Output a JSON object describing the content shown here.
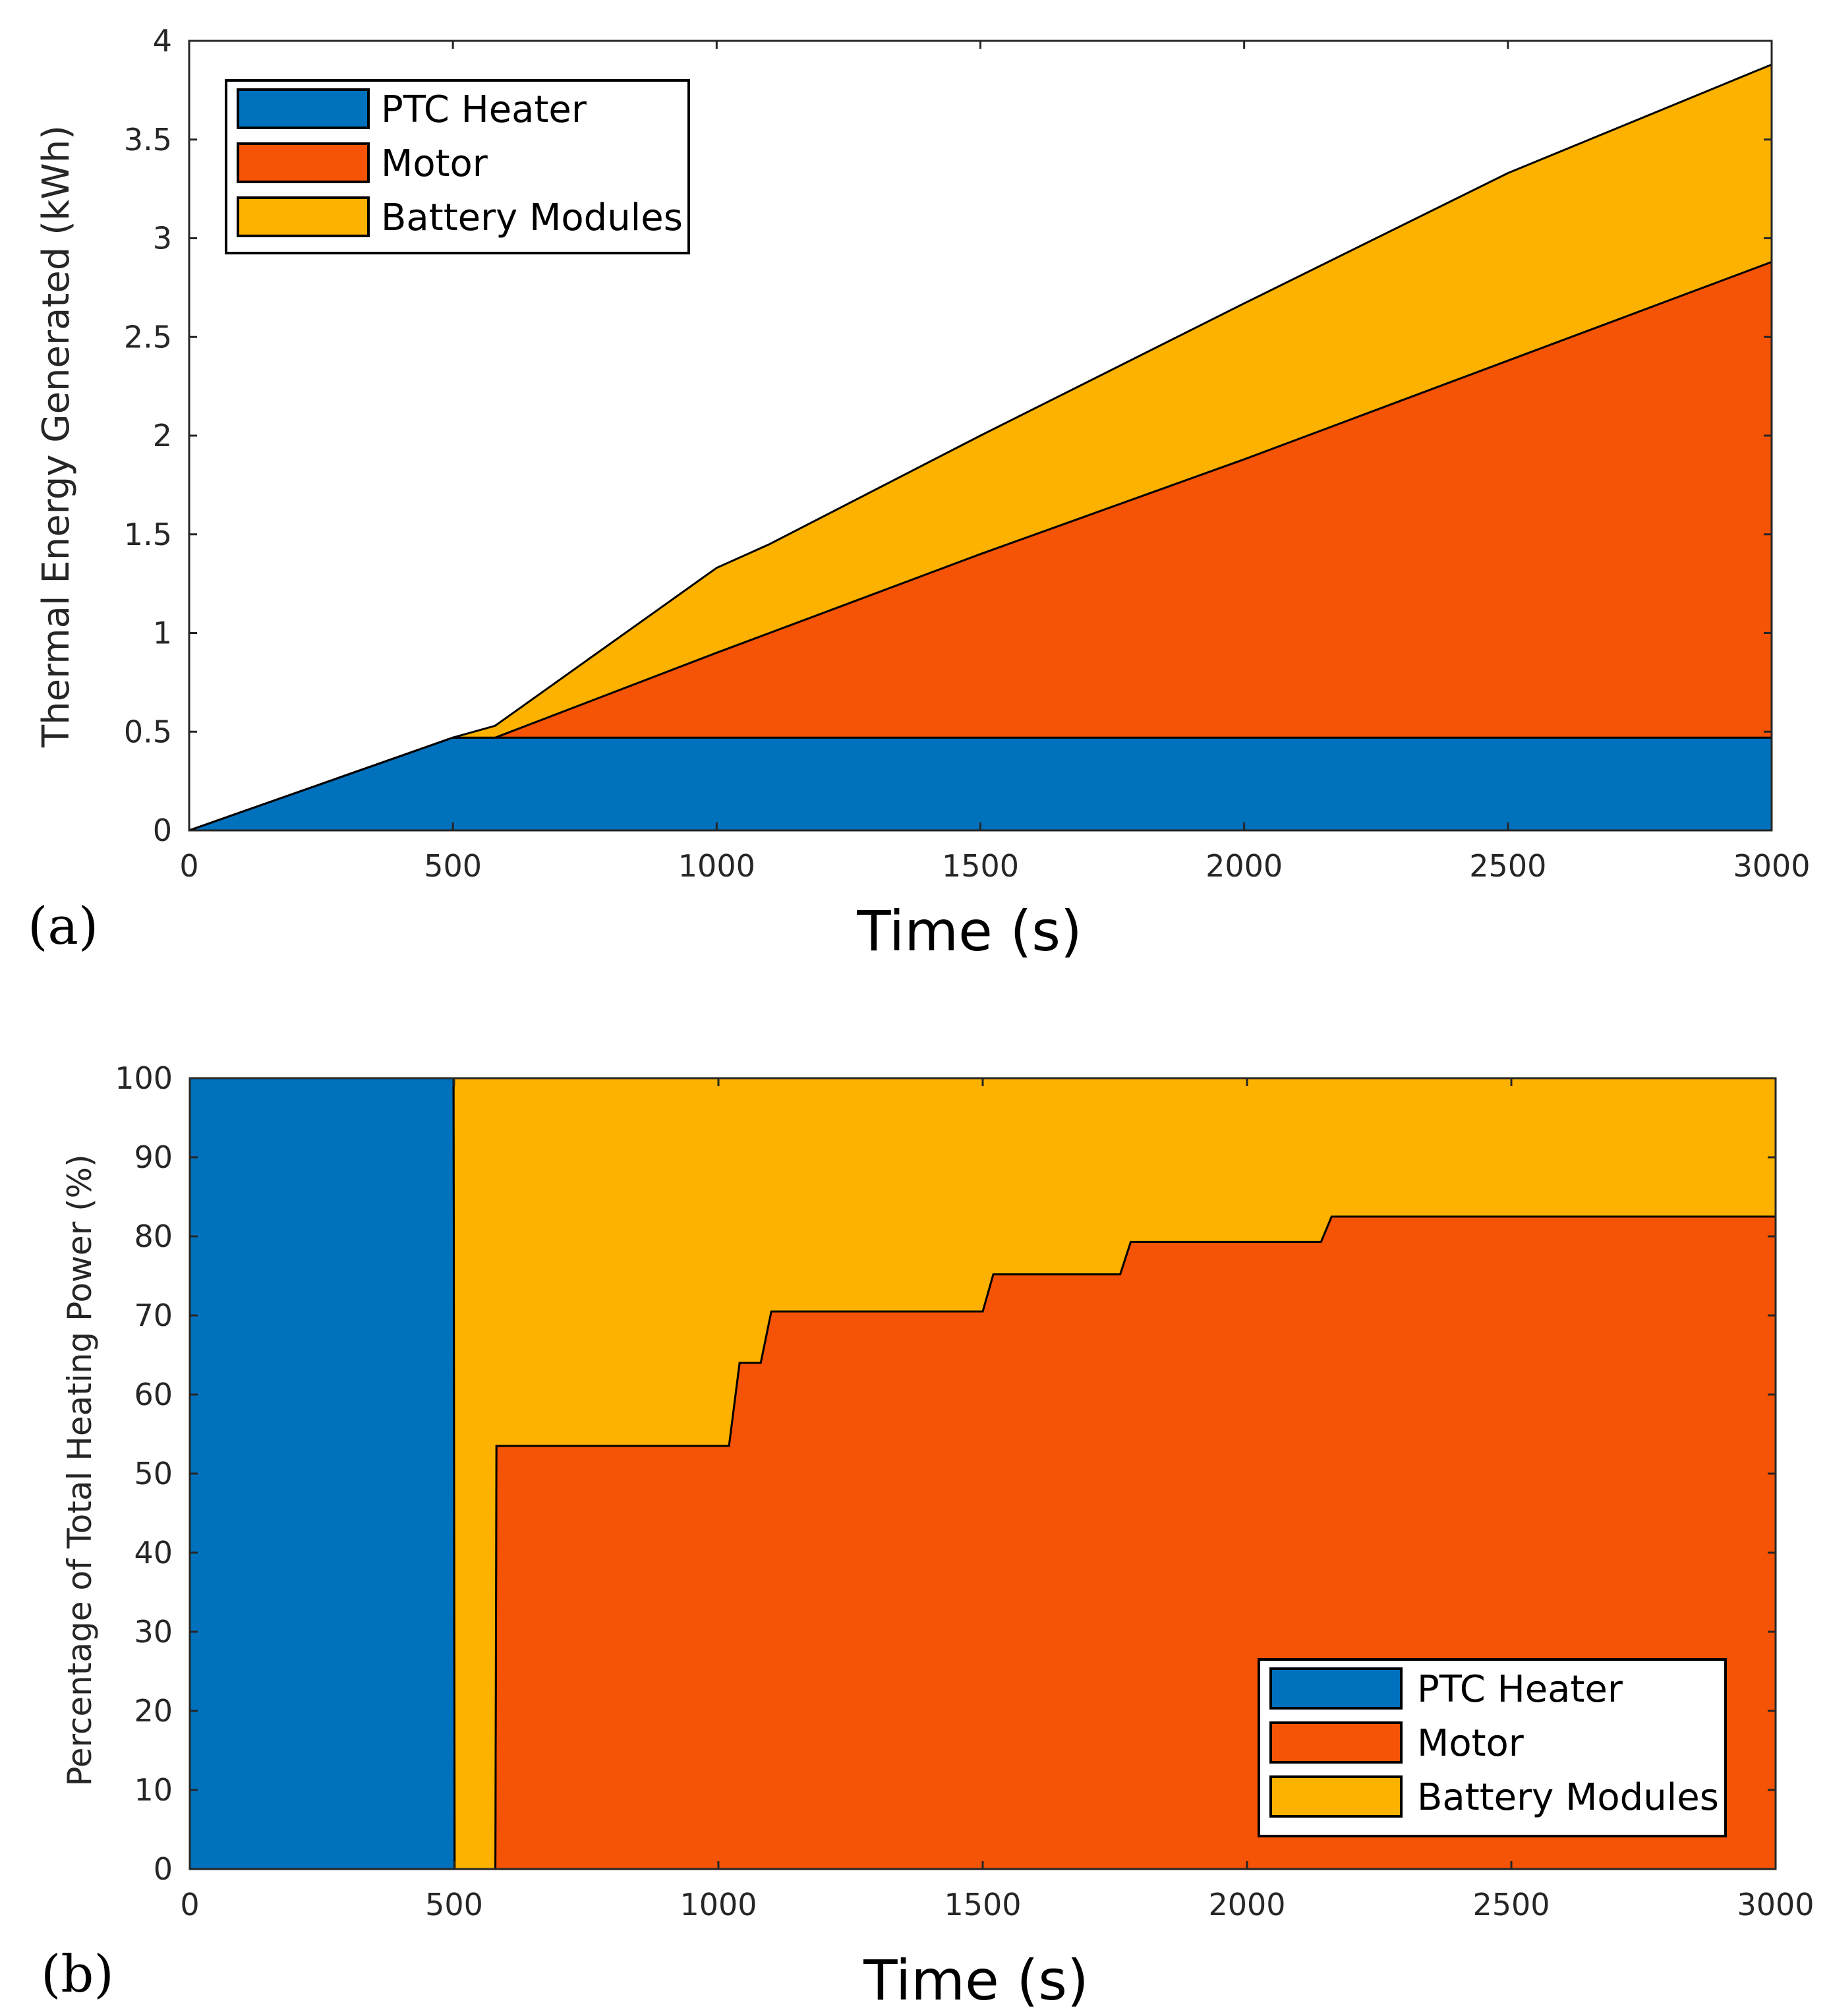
{
  "colors": {
    "ptc": "#0072BD",
    "motor": "#F55306",
    "battery": "#FDB200",
    "axis": "#262626"
  },
  "chart_data": [
    {
      "id": "a",
      "type": "area",
      "stacked": true,
      "panel_label": "(a)",
      "xlabel": "Time (s)",
      "ylabel": "Thermal Energy Generated (kWh)",
      "xlim": [
        0,
        3000
      ],
      "ylim": [
        0,
        4
      ],
      "xticks": [
        0,
        500,
        1000,
        1500,
        2000,
        2500,
        3000
      ],
      "xtick_labels": [
        "0",
        "500",
        "1000",
        "1500",
        "2000",
        "2500",
        "3000"
      ],
      "yticks": [
        0,
        0.5,
        1,
        1.5,
        2,
        2.5,
        3,
        3.5,
        4
      ],
      "ytick_labels": [
        "0",
        "0.5",
        "1",
        "1.5",
        "2",
        "2.5",
        "3",
        "3.5",
        "4"
      ],
      "legend_position": "top-left",
      "x": [
        0,
        500,
        580,
        1000,
        1100,
        1500,
        2000,
        2500,
        3000
      ],
      "series": [
        {
          "name": "PTC Heater",
          "color_key": "ptc",
          "values": [
            0,
            0.47,
            0.47,
            0.47,
            0.47,
            0.47,
            0.47,
            0.47,
            0.47
          ]
        },
        {
          "name": "Motor",
          "color_key": "motor",
          "values": [
            0,
            0,
            0,
            0.43,
            0.53,
            0.93,
            1.41,
            1.91,
            2.41
          ]
        },
        {
          "name": "Battery Modules",
          "color_key": "battery",
          "values": [
            0,
            0,
            0.06,
            0.43,
            0.45,
            0.6,
            0.79,
            0.95,
            1.0
          ]
        }
      ]
    },
    {
      "id": "b",
      "type": "area",
      "stacked": true,
      "panel_label": "(b)",
      "xlabel": "Time (s)",
      "ylabel": "Percentage of Total Heating Power (%)",
      "xlim": [
        0,
        3000
      ],
      "ylim": [
        0,
        100
      ],
      "xticks": [
        0,
        500,
        1000,
        1500,
        2000,
        2500,
        3000
      ],
      "xtick_labels": [
        "0",
        "500",
        "1000",
        "1500",
        "2000",
        "2500",
        "3000"
      ],
      "yticks": [
        0,
        10,
        20,
        30,
        40,
        50,
        60,
        70,
        80,
        90,
        100
      ],
      "ytick_labels": [
        "0",
        "10",
        "20",
        "30",
        "40",
        "50",
        "60",
        "70",
        "80",
        "90",
        "100"
      ],
      "legend_position": "bottom-right",
      "x": [
        0,
        499,
        501,
        578,
        580,
        1020,
        1040,
        1080,
        1100,
        1500,
        1520,
        1760,
        1780,
        2140,
        2160,
        3000
      ],
      "series": [
        {
          "name": "PTC Heater",
          "color_key": "ptc",
          "values": [
            100,
            100,
            0,
            0,
            0,
            0,
            0,
            0,
            0,
            0,
            0,
            0,
            0,
            0,
            0,
            0
          ]
        },
        {
          "name": "Motor",
          "color_key": "motor",
          "values": [
            0,
            0,
            0,
            0,
            53.5,
            53.5,
            64,
            64,
            70.5,
            70.5,
            75.2,
            75.2,
            79.3,
            79.3,
            82.5,
            82.5
          ]
        },
        {
          "name": "Battery Modules",
          "color_key": "battery",
          "values": [
            0,
            0,
            100,
            100,
            46.5,
            46.5,
            36,
            36,
            29.5,
            29.5,
            24.8,
            24.8,
            20.7,
            20.7,
            17.5,
            17.5
          ]
        }
      ]
    }
  ]
}
